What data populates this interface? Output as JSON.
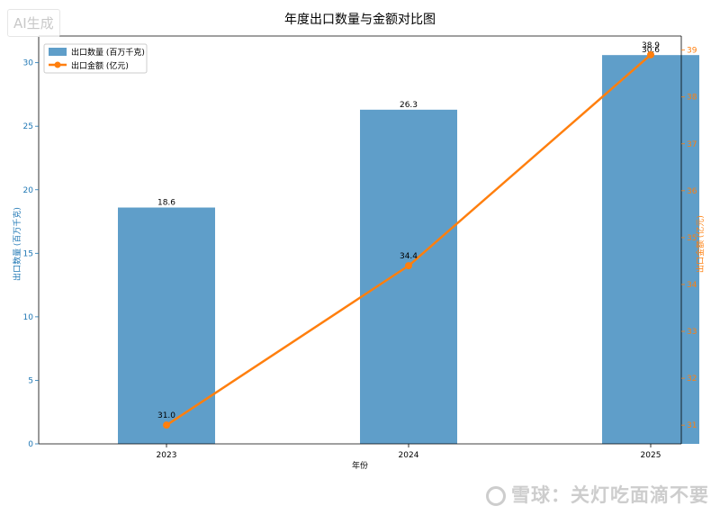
{
  "watermark": {
    "top_left": "AI生成",
    "bottom_right": "雪球：关灯吃面滴不要"
  },
  "chart_data": {
    "type": "bar",
    "title": "年度出口数量与金额对比图",
    "xlabel": "年份",
    "categories": [
      "2023",
      "2024",
      "2025"
    ],
    "grid": false,
    "legend_position": "top-left",
    "colors": {
      "bar": "#5f9ec9",
      "line": "#ff7f0e",
      "left_axis": "#1f77b4",
      "right_axis": "#ff7f0e"
    },
    "series": [
      {
        "name": "出口数量 (百万千克)",
        "kind": "bar",
        "axis": "left",
        "values": [
          18.6,
          26.3,
          30.6
        ],
        "labels": [
          "18.6",
          "26.3",
          "30.6"
        ]
      },
      {
        "name": "出口金额 (亿元)",
        "kind": "line",
        "axis": "right",
        "values": [
          31.0,
          34.4,
          38.9
        ],
        "labels": [
          "31.0",
          "34.4",
          "38.9"
        ]
      }
    ],
    "y_left": {
      "label": "出口数量 (百万千克)",
      "ylim": [
        0,
        32.1
      ],
      "ticks": [
        "0",
        "5",
        "10",
        "15",
        "20",
        "25",
        "30"
      ]
    },
    "y_right": {
      "label": "出口金额 (亿元)",
      "ylim": [
        30.6,
        39.3
      ],
      "ticks": [
        "31",
        "32",
        "33",
        "34",
        "35",
        "36",
        "37",
        "38",
        "39"
      ]
    }
  }
}
